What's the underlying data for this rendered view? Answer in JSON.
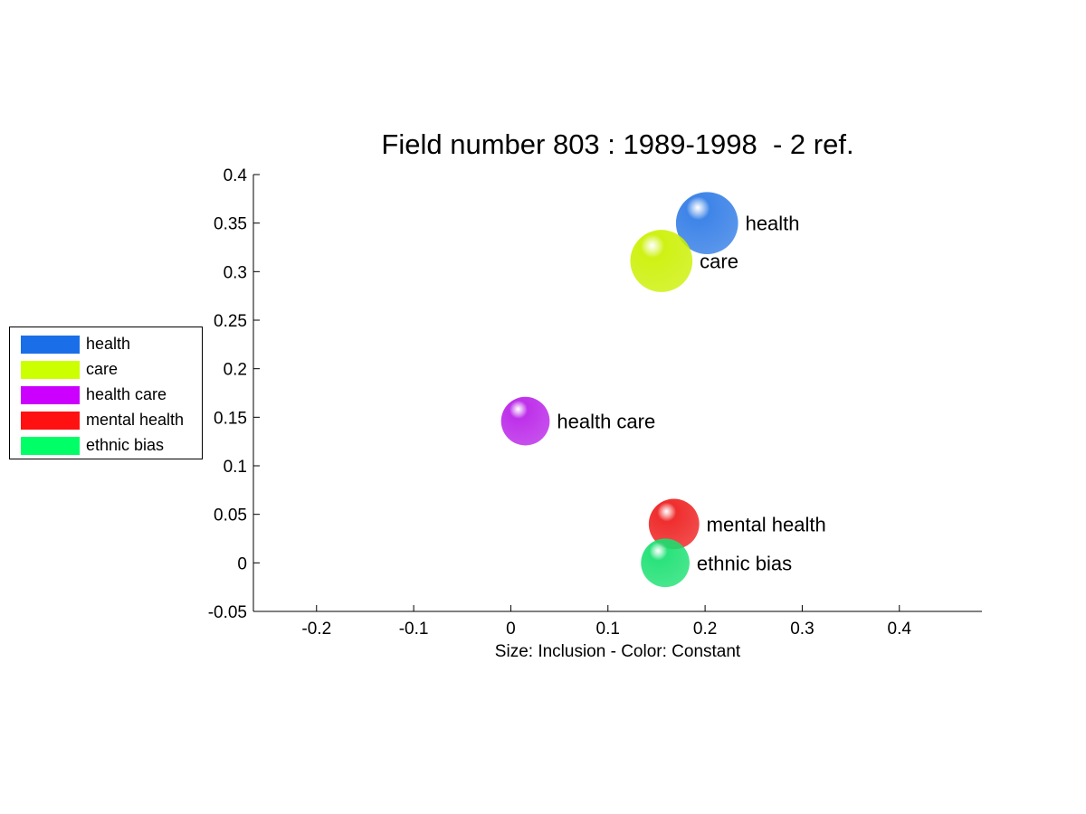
{
  "chart_data": {
    "type": "scatter",
    "title": "Field number 803 : 1989-1998  - 2 ref.",
    "xlabel": "Size: Inclusion - Color: Constant",
    "ylabel": "",
    "xlim": [
      -0.265,
      0.485
    ],
    "ylim": [
      -0.05,
      0.4
    ],
    "xticks": [
      -0.2,
      -0.1,
      0,
      0.1,
      0.2,
      0.3,
      0.4
    ],
    "xtick_labels": [
      "-0.2",
      "-0.1",
      "0",
      "0.1",
      "0.2",
      "0.3",
      "0.4"
    ],
    "yticks": [
      -0.05,
      0,
      0.05,
      0.1,
      0.15,
      0.2,
      0.25,
      0.3,
      0.35,
      0.4
    ],
    "ytick_labels": [
      "-0.05",
      "0",
      "0.05",
      "0.1",
      "0.15",
      "0.2",
      "0.25",
      "0.3",
      "0.35",
      "0.4"
    ],
    "grid": false,
    "legend_position": "outside-left",
    "points": [
      {
        "label": "health",
        "x": 0.202,
        "y": 0.35,
        "size": 0.032,
        "color": "#2e7ae6"
      },
      {
        "label": "care",
        "x": 0.155,
        "y": 0.311,
        "size": 0.032,
        "color": "#ccf000"
      },
      {
        "label": "health care",
        "x": 0.015,
        "y": 0.146,
        "size": 0.025,
        "color": "#b820e8"
      },
      {
        "label": "mental health",
        "x": 0.168,
        "y": 0.04,
        "size": 0.026,
        "color": "#ee1c1c"
      },
      {
        "label": "ethnic bias",
        "x": 0.159,
        "y": 0.0,
        "size": 0.025,
        "color": "#18e070"
      }
    ]
  },
  "legend": {
    "items": [
      {
        "label": "health",
        "color": "#1a6fe8"
      },
      {
        "label": "care",
        "color": "#ccff00"
      },
      {
        "label": "health care",
        "color": "#cc00ff"
      },
      {
        "label": "mental health",
        "color": "#ff1111"
      },
      {
        "label": "ethnic bias",
        "color": "#00ff66"
      }
    ]
  }
}
